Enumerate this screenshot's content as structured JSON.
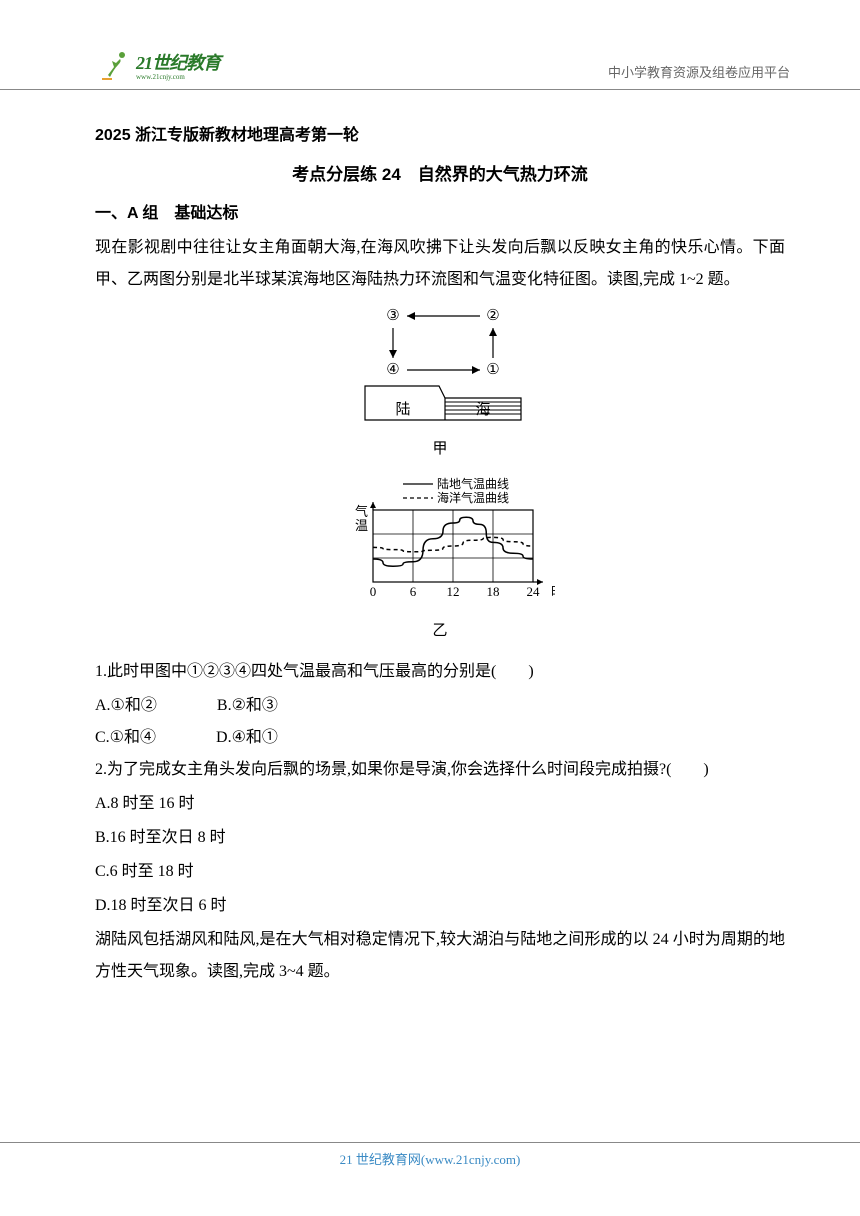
{
  "header": {
    "logo_main": "21世纪教育",
    "logo_sub": "www.21cnjy.com",
    "right_text": "中小学教育资源及组卷应用平台"
  },
  "doc": {
    "main_title": "2025 浙江专版新教材地理高考第一轮",
    "subtitle": "考点分层练 24　自然界的大气热力环流",
    "section_a": "一、A 组　基础达标",
    "para1": "现在影视剧中往往让女主角面朝大海,在海风吹拂下让头发向后飘以反映女主角的快乐心情。下面甲、乙两图分别是北半球某滨海地区海陆热力环流图和气温变化特征图。读图,完成 1~2 题。",
    "fig1": {
      "labels": {
        "tl": "③",
        "tr": "②",
        "bl": "④",
        "br": "①",
        "land": "陆",
        "sea": "海"
      },
      "caption": "甲",
      "colors": {
        "stroke": "#000000",
        "fill_land": "#ffffff",
        "fill_sea_line": "#000000"
      }
    },
    "fig2": {
      "caption": "乙",
      "legend_land": "陆地气温曲线",
      "legend_sea": "海洋气温曲线",
      "ylabel": "气温",
      "xlabel": "时",
      "xlim": [
        0,
        24
      ],
      "xticks": [
        "0",
        "6",
        "12",
        "18",
        "24"
      ],
      "land_curve": [
        [
          0,
          0.32
        ],
        [
          3,
          0.22
        ],
        [
          6,
          0.28
        ],
        [
          9,
          0.6
        ],
        [
          12,
          0.82
        ],
        [
          14,
          0.9
        ],
        [
          16,
          0.8
        ],
        [
          18,
          0.55
        ],
        [
          21,
          0.4
        ],
        [
          24,
          0.32
        ]
      ],
      "sea_curve": [
        [
          0,
          0.48
        ],
        [
          3,
          0.45
        ],
        [
          6,
          0.42
        ],
        [
          9,
          0.44
        ],
        [
          12,
          0.5
        ],
        [
          15,
          0.58
        ],
        [
          18,
          0.62
        ],
        [
          21,
          0.56
        ],
        [
          24,
          0.5
        ]
      ],
      "colors": {
        "grid": "#000000",
        "land_stroke": "#000000",
        "sea_stroke": "#000000",
        "bg": "#ffffff"
      }
    },
    "q1": {
      "stem": "1.此时甲图中①②③④四处气温最高和气压最高的分别是(　　)",
      "opts": {
        "A": "A.①和②",
        "B": "B.②和③",
        "C": "C.①和④",
        "D": "D.④和①"
      }
    },
    "q2": {
      "stem": "2.为了完成女主角头发向后飘的场景,如果你是导演,你会选择什么时间段完成拍摄?(　　)",
      "opts": {
        "A": "A.8 时至 16 时",
        "B": "B.16 时至次日 8 时",
        "C": "C.6 时至 18 时",
        "D": "D.18 时至次日 6 时"
      }
    },
    "para2": "湖陆风包括湖风和陆风,是在大气相对稳定情况下,较大湖泊与陆地之间形成的以 24 小时为周期的地方性天气现象。读图,完成 3~4 题。"
  },
  "footer": {
    "text": "21 世纪教育网(www.21cnjy.com)"
  }
}
